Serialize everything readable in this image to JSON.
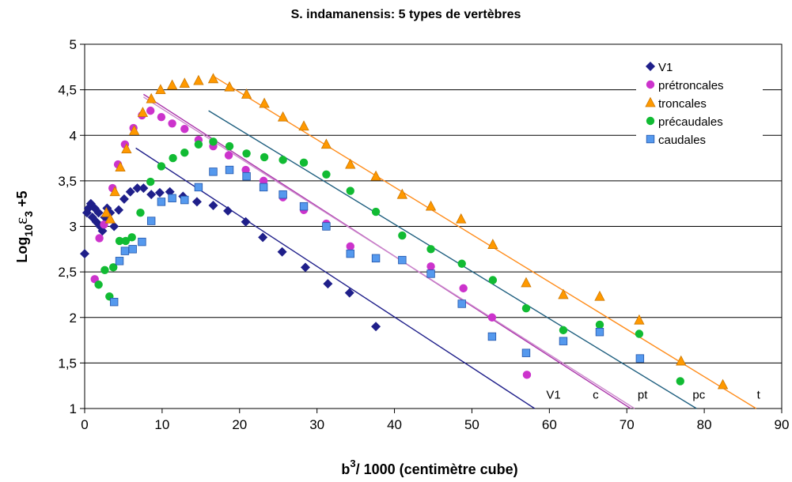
{
  "chart_data": {
    "type": "scatter",
    "title": "S. indamanensis: 5 types de vertèbres",
    "xlabel": {
      "base": "b",
      "sup": "3",
      "rest": "/ 1000 (centimètre cube)"
    },
    "ylabel": {
      "pre": "Log",
      "sub1": "10",
      "eps": "ε",
      "sub2": "3",
      "rest": " +5"
    },
    "xlim": [
      0,
      90
    ],
    "ylim": [
      1,
      5
    ],
    "xticks": [
      "0",
      "10",
      "20",
      "30",
      "40",
      "50",
      "60",
      "70",
      "80",
      "90"
    ],
    "yticks": [
      "1",
      "1,5",
      "2",
      "2,5",
      "3",
      "3,5",
      "4",
      "4,5",
      "5"
    ],
    "grid": "horizontal",
    "legend_position": "right",
    "series": [
      {
        "name": "V1",
        "marker": "diamond",
        "color": "#1F1F8A",
        "points": [
          [
            0,
            2.7
          ],
          [
            0.3,
            3.15
          ],
          [
            0.5,
            3.2
          ],
          [
            0.8,
            3.25
          ],
          [
            1,
            3.1
          ],
          [
            1.3,
            3.2
          ],
          [
            1.5,
            3.05
          ],
          [
            1.8,
            3.15
          ],
          [
            2,
            3.0
          ],
          [
            2.3,
            2.95
          ],
          [
            2.6,
            3.1
          ],
          [
            2.9,
            3.2
          ],
          [
            3.3,
            3.15
          ],
          [
            3.8,
            3.0
          ],
          [
            4.4,
            3.18
          ],
          [
            5.1,
            3.3
          ],
          [
            5.9,
            3.38
          ],
          [
            6.8,
            3.42
          ],
          [
            7.6,
            3.42
          ],
          [
            8.6,
            3.35
          ],
          [
            9.7,
            3.37
          ],
          [
            11,
            3.38
          ],
          [
            12.7,
            3.33
          ],
          [
            14.5,
            3.27
          ],
          [
            16.6,
            3.23
          ],
          [
            18.5,
            3.17
          ],
          [
            20.8,
            3.05
          ],
          [
            23,
            2.88
          ],
          [
            25.5,
            2.72
          ],
          [
            28.5,
            2.55
          ],
          [
            31.4,
            2.37
          ],
          [
            34.2,
            2.27
          ],
          [
            37.6,
            1.9
          ]
        ]
      },
      {
        "name": "prétroncales",
        "marker": "circle",
        "color": "#CC33CC",
        "points": [
          [
            1.3,
            2.42
          ],
          [
            1.9,
            2.87
          ],
          [
            2.5,
            3.02
          ],
          [
            3.6,
            3.42
          ],
          [
            4.3,
            3.68
          ],
          [
            5.2,
            3.9
          ],
          [
            6.3,
            4.08
          ],
          [
            7.4,
            4.22
          ],
          [
            8.5,
            4.27
          ],
          [
            9.9,
            4.2
          ],
          [
            11.3,
            4.13
          ],
          [
            12.9,
            4.07
          ],
          [
            14.7,
            3.95
          ],
          [
            16.6,
            3.88
          ],
          [
            18.6,
            3.78
          ],
          [
            20.8,
            3.62
          ],
          [
            23.1,
            3.5
          ],
          [
            25.6,
            3.32
          ],
          [
            28.3,
            3.18
          ],
          [
            31.2,
            3.03
          ],
          [
            34.3,
            2.78
          ],
          [
            44.7,
            2.56
          ],
          [
            48.9,
            2.32
          ],
          [
            52.6,
            2.0
          ],
          [
            57.1,
            1.37
          ]
        ]
      },
      {
        "name": "troncales",
        "marker": "triangle",
        "color": "#FF9900",
        "points": [
          [
            2.8,
            3.15
          ],
          [
            3.3,
            3.08
          ],
          [
            3.9,
            3.38
          ],
          [
            4.6,
            3.65
          ],
          [
            5.4,
            3.85
          ],
          [
            6.4,
            4.05
          ],
          [
            7.5,
            4.25
          ],
          [
            8.6,
            4.4
          ],
          [
            9.8,
            4.5
          ],
          [
            11.3,
            4.55
          ],
          [
            12.9,
            4.57
          ],
          [
            14.7,
            4.6
          ],
          [
            16.6,
            4.62
          ],
          [
            18.7,
            4.53
          ],
          [
            20.9,
            4.45
          ],
          [
            23.2,
            4.35
          ],
          [
            25.6,
            4.2
          ],
          [
            28.3,
            4.1
          ],
          [
            31.2,
            3.9
          ],
          [
            34.3,
            3.68
          ],
          [
            37.6,
            3.55
          ],
          [
            41,
            3.35
          ],
          [
            44.7,
            3.22
          ],
          [
            48.6,
            3.08
          ],
          [
            52.7,
            2.8
          ],
          [
            57,
            2.38
          ],
          [
            61.8,
            2.25
          ],
          [
            66.5,
            2.23
          ],
          [
            71.6,
            1.97
          ],
          [
            77,
            1.52
          ],
          [
            82.4,
            1.26
          ]
        ]
      },
      {
        "name": "précaudales",
        "marker": "circle",
        "color": "#11BB33",
        "points": [
          [
            1.8,
            2.36
          ],
          [
            2.6,
            2.52
          ],
          [
            3.2,
            2.23
          ],
          [
            3.7,
            2.55
          ],
          [
            4.5,
            2.84
          ],
          [
            5.3,
            2.84
          ],
          [
            6.1,
            2.88
          ],
          [
            7.2,
            3.15
          ],
          [
            8.5,
            3.49
          ],
          [
            9.9,
            3.66
          ],
          [
            11.4,
            3.75
          ],
          [
            12.9,
            3.81
          ],
          [
            14.7,
            3.9
          ],
          [
            16.6,
            3.93
          ],
          [
            18.7,
            3.88
          ],
          [
            20.9,
            3.8
          ],
          [
            23.2,
            3.76
          ],
          [
            25.6,
            3.73
          ],
          [
            28.3,
            3.7
          ],
          [
            31.2,
            3.57
          ],
          [
            34.3,
            3.39
          ],
          [
            37.6,
            3.16
          ],
          [
            41,
            2.9
          ],
          [
            44.7,
            2.75
          ],
          [
            48.7,
            2.59
          ],
          [
            52.7,
            2.41
          ],
          [
            57,
            2.1
          ],
          [
            61.8,
            1.86
          ],
          [
            66.5,
            1.92
          ],
          [
            71.6,
            1.82
          ],
          [
            76.9,
            1.3
          ]
        ]
      },
      {
        "name": "caudales",
        "marker": "square",
        "color": "#5599EE",
        "points": [
          [
            3.8,
            2.17
          ],
          [
            4.5,
            2.62
          ],
          [
            5.2,
            2.73
          ],
          [
            6.2,
            2.75
          ],
          [
            7.4,
            2.83
          ],
          [
            8.6,
            3.06
          ],
          [
            9.9,
            3.27
          ],
          [
            11.3,
            3.31
          ],
          [
            12.9,
            3.29
          ],
          [
            14.7,
            3.43
          ],
          [
            16.6,
            3.6
          ],
          [
            18.7,
            3.62
          ],
          [
            20.9,
            3.55
          ],
          [
            23.1,
            3.43
          ],
          [
            25.6,
            3.35
          ],
          [
            28.3,
            3.22
          ],
          [
            31.2,
            3.0
          ],
          [
            34.3,
            2.7
          ],
          [
            37.6,
            2.65
          ],
          [
            41,
            2.63
          ],
          [
            44.7,
            2.48
          ],
          [
            48.7,
            2.15
          ],
          [
            52.6,
            1.79
          ],
          [
            57,
            1.61
          ],
          [
            61.8,
            1.74
          ],
          [
            66.5,
            1.84
          ],
          [
            71.7,
            1.55
          ]
        ]
      }
    ],
    "fit_lines": [
      {
        "label": "V1",
        "color": "#1F1F8A",
        "from": [
          6.6,
          3.86
        ],
        "to": [
          58.1,
          1.0
        ],
        "label_at": [
          59.6,
          1.15
        ]
      },
      {
        "label": "c",
        "color": "#AA33AA",
        "from": [
          7.6,
          4.45
        ],
        "to": [
          70.5,
          1.0
        ],
        "label_at": [
          65.6,
          1.15
        ]
      },
      {
        "label": "",
        "color": "#CC88CC",
        "from": [
          7.6,
          4.42
        ],
        "to": [
          71.0,
          1.0
        ],
        "label_at": null
      },
      {
        "label": "pt",
        "color": "#000000",
        "from": null,
        "to": null,
        "label_at": [
          71.4,
          1.15
        ]
      },
      {
        "label": "pc",
        "color": "#1F5F7F",
        "from": [
          16.0,
          4.27
        ],
        "to": [
          79.0,
          1.0
        ],
        "label_at": [
          78.5,
          1.15
        ]
      },
      {
        "label": "t",
        "color": "#FF8C1A",
        "from": [
          16.6,
          4.65
        ],
        "to": [
          86.7,
          1.0
        ],
        "label_at": [
          86.8,
          1.15
        ]
      }
    ]
  }
}
